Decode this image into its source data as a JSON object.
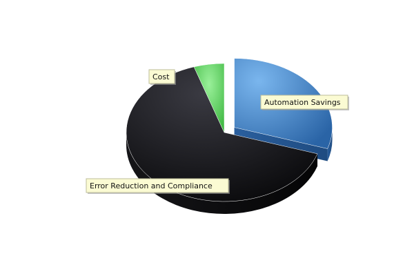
{
  "chart_data": {
    "type": "pie",
    "style": "3d-exploded",
    "slices": [
      {
        "label": "Automation Savings",
        "value": 30,
        "color": "#3b7fc4"
      },
      {
        "label": "Error Reduction and Compliance",
        "value": 65,
        "color": "#1c1c1f"
      },
      {
        "label": "Cost",
        "value": 5,
        "color": "#4fc94f"
      }
    ],
    "legend": "none",
    "labels": "boxed-callouts"
  }
}
